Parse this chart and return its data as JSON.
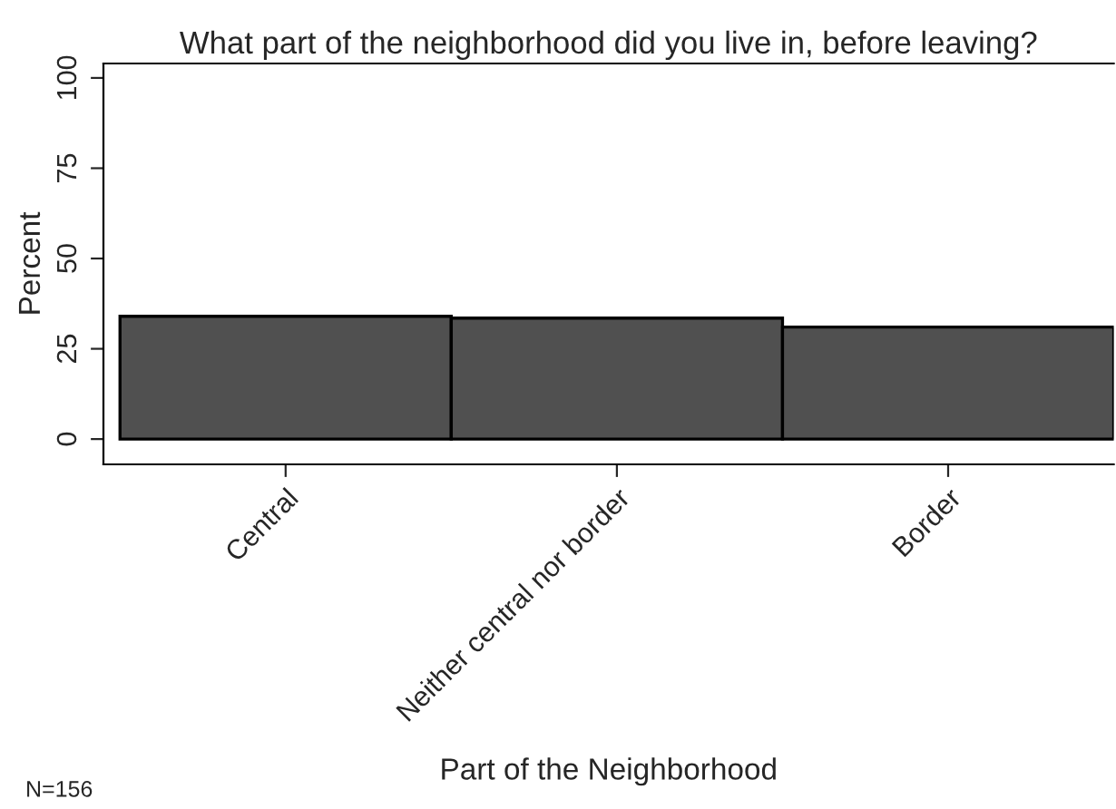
{
  "chart_data": {
    "type": "bar",
    "title": "What part of the neighborhood did you live in, before leaving?",
    "categories": [
      "Central",
      "Neither central nor border",
      "Border"
    ],
    "values": [
      34,
      33.5,
      31
    ],
    "color": "#505050",
    "xlabel": "Part of the Neighborhood",
    "ylabel": "Percent",
    "ylim": [
      -7,
      104
    ],
    "yticks": [
      0,
      25,
      50,
      75,
      100
    ],
    "grid": false,
    "legend": false,
    "annotations": [
      "N=156"
    ]
  }
}
